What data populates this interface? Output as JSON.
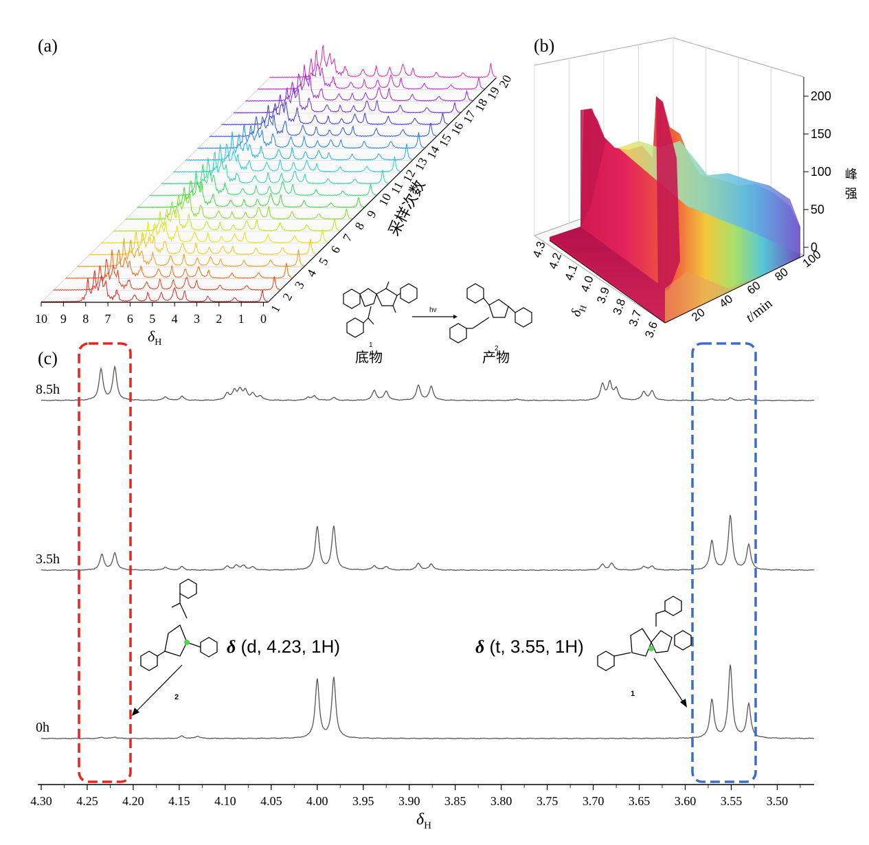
{
  "panels": {
    "a": "(a)",
    "b": "(b)",
    "c": "(c)"
  },
  "colors": {
    "spectrum": "#555555",
    "red_box": "#e8251c",
    "blue_box": "#3a6cc8",
    "marker": "#4dd94d"
  },
  "panel_a": {
    "x_ticks": [
      "10",
      "9",
      "8",
      "7",
      "6",
      "5",
      "4",
      "3",
      "2",
      "1",
      "0"
    ],
    "x_label": "δ",
    "x_label_sub": "H",
    "depth_label": "采样次数",
    "depth_ticks": [
      "1",
      "2",
      "3",
      "4",
      "5",
      "6",
      "7",
      "8",
      "9",
      "10",
      "11",
      "12",
      "13",
      "14",
      "15",
      "16",
      "17",
      "18",
      "19",
      "20"
    ]
  },
  "panel_b": {
    "z_ticks": [
      "0",
      "50",
      "100",
      "150",
      "200"
    ],
    "z_label_1": "峰",
    "z_label_2": "强",
    "x_ticks": [
      "4.3",
      "4.2",
      "4.1",
      "4.0",
      "3.9",
      "3.8",
      "3.7",
      "3.6"
    ],
    "x_label": "δ",
    "x_label_sub": "H",
    "t_ticks": [
      "20",
      "40",
      "60",
      "80",
      "100"
    ],
    "t_label_var": "t",
    "t_label_unit": "/min"
  },
  "reaction": {
    "arrow_label": "hν",
    "substrate_num": "1",
    "product_num": "2",
    "substrate_label": "底物",
    "product_label": "产物"
  },
  "annotations": {
    "left_delta": "δ",
    "left_text": " (d, 4.23, 1H)",
    "right_delta": "δ",
    "right_text": " (t, 3.55, 1H)",
    "left_compound": "2",
    "right_compound": "1"
  },
  "chart_data": {
    "type": "line",
    "xlabel": "δH",
    "xlim": [
      4.3,
      3.46
    ],
    "x_ticks": [
      "4.30",
      "4.25",
      "4.20",
      "4.15",
      "4.10",
      "4.05",
      "4.00",
      "3.95",
      "3.90",
      "3.85",
      "3.80",
      "3.75",
      "3.70",
      "3.65",
      "3.60",
      "3.55",
      "3.50"
    ],
    "series": [
      {
        "name": "8.5h",
        "peaks": [
          {
            "x": 4.235,
            "h": 1.0
          },
          {
            "x": 4.22,
            "h": 1.06
          },
          {
            "x": 4.165,
            "h": 0.12
          },
          {
            "x": 4.147,
            "h": 0.13
          },
          {
            "x": 4.098,
            "h": 0.22
          },
          {
            "x": 4.09,
            "h": 0.3
          },
          {
            "x": 4.084,
            "h": 0.32
          },
          {
            "x": 4.078,
            "h": 0.3
          },
          {
            "x": 4.07,
            "h": 0.2
          },
          {
            "x": 4.062,
            "h": 0.14
          },
          {
            "x": 4.01,
            "h": 0.1
          },
          {
            "x": 4.003,
            "h": 0.14
          },
          {
            "x": 3.982,
            "h": 0.09
          },
          {
            "x": 3.938,
            "h": 0.32
          },
          {
            "x": 3.925,
            "h": 0.3
          },
          {
            "x": 3.89,
            "h": 0.48
          },
          {
            "x": 3.876,
            "h": 0.45
          },
          {
            "x": 3.783,
            "h": 0.05
          },
          {
            "x": 3.69,
            "h": 0.5
          },
          {
            "x": 3.682,
            "h": 0.56
          },
          {
            "x": 3.675,
            "h": 0.35
          },
          {
            "x": 3.645,
            "h": 0.28
          },
          {
            "x": 3.636,
            "h": 0.3
          },
          {
            "x": 3.571,
            "h": 0.05
          },
          {
            "x": 3.551,
            "h": 0.08
          },
          {
            "x": 3.531,
            "h": 0.05
          }
        ]
      },
      {
        "name": "3.5h",
        "peaks": [
          {
            "x": 4.234,
            "h": 0.5
          },
          {
            "x": 4.22,
            "h": 0.55
          },
          {
            "x": 4.165,
            "h": 0.1
          },
          {
            "x": 4.147,
            "h": 0.11
          },
          {
            "x": 4.098,
            "h": 0.12
          },
          {
            "x": 4.088,
            "h": 0.16
          },
          {
            "x": 4.08,
            "h": 0.15
          },
          {
            "x": 4.07,
            "h": 0.1
          },
          {
            "x": 4.0,
            "h": 1.4
          },
          {
            "x": 3.982,
            "h": 1.4
          },
          {
            "x": 3.938,
            "h": 0.14
          },
          {
            "x": 3.925,
            "h": 0.12
          },
          {
            "x": 3.89,
            "h": 0.22
          },
          {
            "x": 3.876,
            "h": 0.2
          },
          {
            "x": 3.69,
            "h": 0.18
          },
          {
            "x": 3.68,
            "h": 0.22
          },
          {
            "x": 3.645,
            "h": 0.12
          },
          {
            "x": 3.636,
            "h": 0.13
          },
          {
            "x": 3.571,
            "h": 0.95
          },
          {
            "x": 3.551,
            "h": 1.75
          },
          {
            "x": 3.531,
            "h": 0.82
          }
        ]
      },
      {
        "name": "0h",
        "peaks": [
          {
            "x": 4.234,
            "h": 0.04
          },
          {
            "x": 4.22,
            "h": 0.05
          },
          {
            "x": 4.147,
            "h": 0.08
          },
          {
            "x": 4.13,
            "h": 0.08
          },
          {
            "x": 4.0,
            "h": 1.9
          },
          {
            "x": 3.982,
            "h": 1.95
          },
          {
            "x": 3.571,
            "h": 1.25
          },
          {
            "x": 3.551,
            "h": 2.35
          },
          {
            "x": 3.531,
            "h": 1.1
          }
        ]
      }
    ]
  }
}
